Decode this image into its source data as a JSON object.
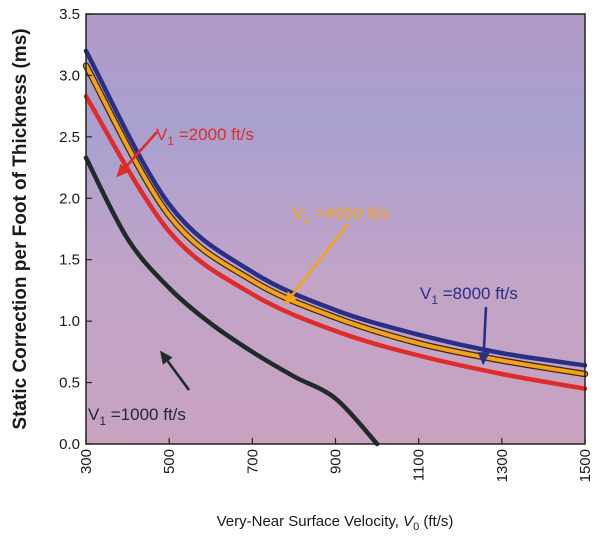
{
  "chart_data": {
    "type": "line",
    "title": "",
    "xlabel": "Very-Near Surface Velocity, V₀ (ft/s)",
    "xlabel_parts": {
      "pre": "Very-Near Surface Velocity, ",
      "var": "V",
      "sub": "0",
      "post": " (ft/s)"
    },
    "ylabel": "Static Correction per Foot of Thickness (ms)",
    "xlim": [
      300,
      1500
    ],
    "ylim": [
      0,
      3.5
    ],
    "x_ticks": [
      "300",
      "500",
      "700",
      "900",
      "1100",
      "1300",
      "1500"
    ],
    "y_ticks": [
      "0.0",
      "0.5",
      "1.0",
      "1.5",
      "2.0",
      "2.5",
      "3.0",
      "3.5"
    ],
    "grid": false,
    "series": [
      {
        "name": "V1 =1000 ft/s",
        "v1": 1000,
        "color": "#1f2a2a",
        "x": [
          300,
          400,
          500,
          600,
          700,
          800,
          900,
          1000
        ],
        "y": [
          2.33,
          1.67,
          1.27,
          0.98,
          0.75,
          0.55,
          0.37,
          0.0
        ]
      },
      {
        "name": "V1 =2000 ft/s",
        "v1": 2000,
        "color": "#e02b2b",
        "x": [
          300,
          500,
          700,
          900,
          1100,
          1300,
          1500
        ],
        "y": [
          2.83,
          1.73,
          1.22,
          0.92,
          0.72,
          0.57,
          0.45
        ]
      },
      {
        "name": "V1 =4000 ft/s",
        "v1": 4000,
        "color": "#f5a21a",
        "x": [
          300,
          500,
          700,
          900,
          1100,
          1300,
          1500
        ],
        "y": [
          3.08,
          1.86,
          1.33,
          1.03,
          0.82,
          0.68,
          0.57
        ]
      },
      {
        "name": "V1 =8000 ft/s",
        "v1": 8000,
        "color": "#2a2f86",
        "x": [
          300,
          500,
          700,
          900,
          1100,
          1300,
          1500
        ],
        "y": [
          3.2,
          1.95,
          1.4,
          1.09,
          0.89,
          0.74,
          0.64
        ]
      }
    ],
    "annotations": [
      {
        "series": "V1 =1000 ft/s",
        "prefix": "V",
        "sub": "1",
        "suffix": " =1000 ft/s",
        "color": "#1f2a2a"
      },
      {
        "series": "V1 =2000 ft/s",
        "prefix": "V",
        "sub": "1",
        "suffix": " =2000 ft/s",
        "color": "#e02b2b"
      },
      {
        "series": "V1 =4000 ft/s",
        "prefix": "V",
        "sub": "1",
        "suffix": " =4000 ft/s",
        "color": "#f5a21a"
      },
      {
        "series": "V1 =8000 ft/s",
        "prefix": "V",
        "sub": "1",
        "suffix": " =8000 ft/s",
        "color": "#2a2f86"
      }
    ],
    "colors": {
      "background": "#bfa5c4",
      "text": "#1a1a1a"
    }
  }
}
